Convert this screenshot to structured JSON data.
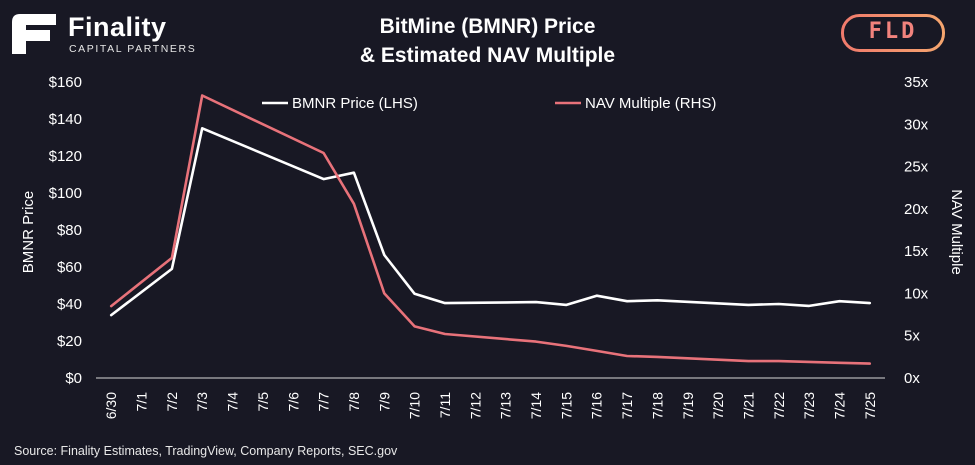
{
  "brand": {
    "name": "Finality",
    "tagline": "CAPITAL PARTNERS",
    "logo_icon": "finality-f-logo-icon"
  },
  "badge": {
    "text": "FLD"
  },
  "source": "Source: Finality Estimates, TradingView, Company Reports, SEC.gov",
  "colors": {
    "background": "#181824",
    "price_line": "#ffffff",
    "nav_line": "#e8727a",
    "badge": "#f2837d"
  },
  "chart_data": {
    "type": "line",
    "title": "BitMine (BMNR) Price & Estimated NAV Multiple",
    "title_lines": [
      "BitMine (BMNR) Price",
      "& Estimated NAV Multiple"
    ],
    "ylabel_left": "BMNR Price",
    "ylabel_right": "NAV Multiple",
    "ylim_left": [
      0,
      160
    ],
    "ylim_right": [
      0,
      35
    ],
    "yticks_left": [
      "$0",
      "$20",
      "$40",
      "$60",
      "$80",
      "$100",
      "$120",
      "$140",
      "$160"
    ],
    "yticks_right": [
      "0x",
      "5x",
      "10x",
      "15x",
      "20x",
      "25x",
      "30x",
      "35x"
    ],
    "categories": [
      "6/30",
      "7/1",
      "7/2",
      "7/3",
      "7/4",
      "7/5",
      "7/6",
      "7/7",
      "7/8",
      "7/9",
      "7/10",
      "7/11",
      "7/12",
      "7/13",
      "7/14",
      "7/15",
      "7/16",
      "7/17",
      "7/18",
      "7/19",
      "7/20",
      "7/21",
      "7/22",
      "7/23",
      "7/24",
      "7/25"
    ],
    "legend_position": "top",
    "grid": false,
    "series": [
      {
        "name": "BMNR Price (LHS)",
        "axis": "left",
        "color": "#ffffff",
        "points": [
          {
            "x": "6/30",
            "y": 34
          },
          {
            "x": "7/2",
            "y": 59
          },
          {
            "x": "7/3",
            "y": 135
          },
          {
            "x": "7/7",
            "y": 107.5
          },
          {
            "x": "7/8",
            "y": 111
          },
          {
            "x": "7/9",
            "y": 66.5
          },
          {
            "x": "7/10",
            "y": 45.5
          },
          {
            "x": "7/11",
            "y": 40.5
          },
          {
            "x": "7/14",
            "y": 41
          },
          {
            "x": "7/15",
            "y": 39.5
          },
          {
            "x": "7/16",
            "y": 44.5
          },
          {
            "x": "7/17",
            "y": 41.5
          },
          {
            "x": "7/18",
            "y": 42
          },
          {
            "x": "7/21",
            "y": 39.5
          },
          {
            "x": "7/22",
            "y": 40
          },
          {
            "x": "7/23",
            "y": 39
          },
          {
            "x": "7/24",
            "y": 41.5
          },
          {
            "x": "7/25",
            "y": 40.5
          }
        ]
      },
      {
        "name": "NAV Multiple (RHS)",
        "axis": "right",
        "color": "#e8727a",
        "points": [
          {
            "x": "6/30",
            "y": 8.5
          },
          {
            "x": "7/2",
            "y": 14.2
          },
          {
            "x": "7/3",
            "y": 33.4
          },
          {
            "x": "7/7",
            "y": 26.6
          },
          {
            "x": "7/8",
            "y": 20.6
          },
          {
            "x": "7/9",
            "y": 10.0
          },
          {
            "x": "7/10",
            "y": 6.1
          },
          {
            "x": "7/11",
            "y": 5.2
          },
          {
            "x": "7/14",
            "y": 4.3
          },
          {
            "x": "7/15",
            "y": 3.8
          },
          {
            "x": "7/16",
            "y": 3.2
          },
          {
            "x": "7/17",
            "y": 2.6
          },
          {
            "x": "7/18",
            "y": 2.5
          },
          {
            "x": "7/21",
            "y": 2.0
          },
          {
            "x": "7/22",
            "y": 2.0
          },
          {
            "x": "7/23",
            "y": 1.9
          },
          {
            "x": "7/24",
            "y": 1.8
          },
          {
            "x": "7/25",
            "y": 1.7
          }
        ]
      }
    ]
  }
}
